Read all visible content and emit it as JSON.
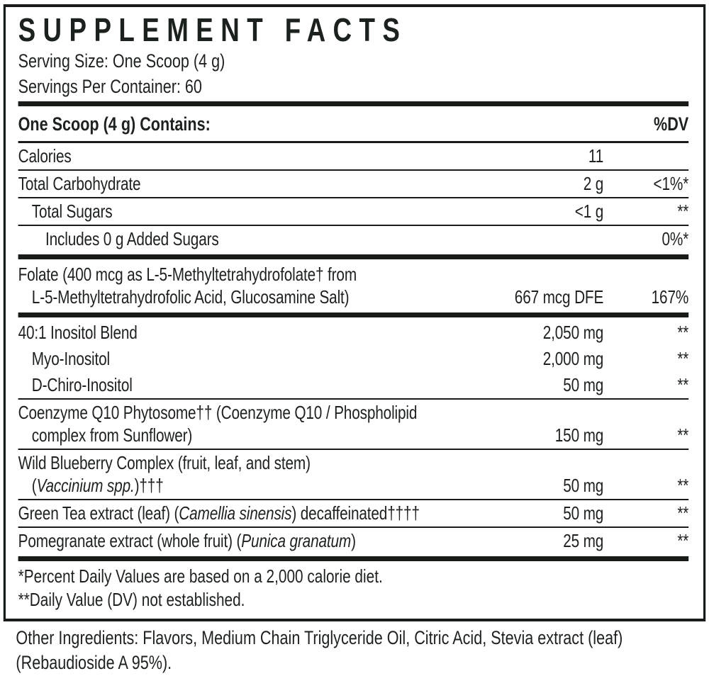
{
  "panel": {
    "title": "SUPPLEMENT FACTS",
    "serving_size": "Serving Size: One Scoop (4 g)",
    "servings_per_container": "Servings Per Container: 60",
    "contains_header": "One Scoop (4 g) Contains:",
    "dv_header": "%DV",
    "footnotes": [
      "*Percent Daily Values are based on a 2,000 calorie diet.",
      "**Daily Value (DV) not established."
    ]
  },
  "facts_rows": [
    {
      "lines": [
        {
          "indent": 0,
          "segments": [
            {
              "text": "Calories"
            }
          ]
        }
      ],
      "amount": "11",
      "dv": "",
      "divider_after": "thin"
    },
    {
      "lines": [
        {
          "indent": 0,
          "segments": [
            {
              "text": "Total Carbohydrate"
            }
          ]
        }
      ],
      "amount": "2 g",
      "dv": "<1%*",
      "divider_after": "thin"
    },
    {
      "lines": [
        {
          "indent": 1,
          "segments": [
            {
              "text": "Total Sugars"
            }
          ]
        }
      ],
      "amount": "<1 g",
      "dv": "**",
      "divider_after": "thin"
    },
    {
      "lines": [
        {
          "indent": 2,
          "segments": [
            {
              "text": "Includes 0 g Added Sugars"
            }
          ]
        }
      ],
      "amount": "",
      "dv": "0%*",
      "divider_after": "thick"
    },
    {
      "lines": [
        {
          "indent": 0,
          "segments": [
            {
              "text": "Folate (400 mcg as L-5-Methyltetrahydrofolate† from"
            }
          ]
        },
        {
          "indent": 1,
          "segments": [
            {
              "text": "L-5-Methyltetrahydrofolic Acid, Glucosamine Salt)"
            }
          ]
        }
      ],
      "amount": "667 mcg DFE",
      "dv": "167%",
      "divider_after": "thick"
    },
    {
      "lines": [
        {
          "indent": 0,
          "segments": [
            {
              "text": "40:1 Inositol Blend"
            }
          ]
        }
      ],
      "amount": "2,050 mg",
      "dv": "**",
      "divider_after": "none"
    },
    {
      "lines": [
        {
          "indent": 1,
          "segments": [
            {
              "text": "Myo-Inositol"
            }
          ]
        }
      ],
      "amount": "2,000 mg",
      "dv": "**",
      "divider_after": "none"
    },
    {
      "lines": [
        {
          "indent": 1,
          "segments": [
            {
              "text": "D-Chiro-Inositol"
            }
          ]
        }
      ],
      "amount": "50 mg",
      "dv": "**",
      "divider_after": "thin"
    },
    {
      "lines": [
        {
          "indent": 0,
          "segments": [
            {
              "text": "Coenzyme Q10 Phytosome†† (Coenzyme Q10 / Phospholipid"
            }
          ]
        },
        {
          "indent": 1,
          "segments": [
            {
              "text": "complex from Sunflower)"
            }
          ]
        }
      ],
      "amount": "150 mg",
      "dv": "**",
      "divider_after": "thin"
    },
    {
      "lines": [
        {
          "indent": 0,
          "segments": [
            {
              "text": "Wild Blueberry Complex (fruit, leaf, and stem)"
            }
          ]
        },
        {
          "indent": 1,
          "segments": [
            {
              "text": "("
            },
            {
              "text": "Vaccinium spp.",
              "italic": true
            },
            {
              "text": ")†††"
            }
          ]
        }
      ],
      "amount": "50 mg",
      "dv": "**",
      "divider_after": "thin"
    },
    {
      "lines": [
        {
          "indent": 0,
          "segments": [
            {
              "text": "Green Tea extract (leaf) ("
            },
            {
              "text": "Camellia sinensis",
              "italic": true
            },
            {
              "text": ") decaffeinated††††"
            }
          ]
        }
      ],
      "amount": "50 mg",
      "dv": "**",
      "divider_after": "thin"
    },
    {
      "lines": [
        {
          "indent": 0,
          "segments": [
            {
              "text": "Pomegranate extract (whole fruit) ("
            },
            {
              "text": "Punica granatum",
              "italic": true
            },
            {
              "text": ")"
            }
          ]
        }
      ],
      "amount": "25 mg",
      "dv": "**",
      "divider_after": "thick"
    }
  ],
  "other_ingredients": "Other Ingredients: Flavors, Medium Chain Triglyceride Oil, Citric Acid, Stevia extract (leaf) (Rebaudioside A 95%).",
  "colors": {
    "ink": "#1d221e",
    "rule": "#171c18",
    "background": "#ffffff"
  }
}
